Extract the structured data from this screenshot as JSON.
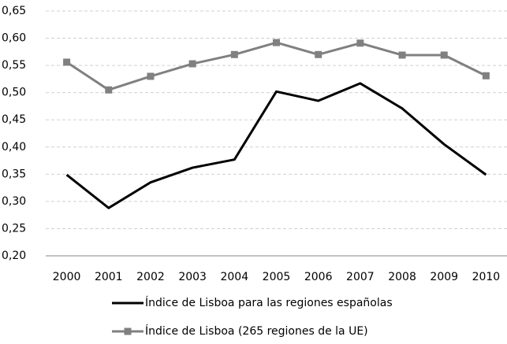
{
  "chart_data": {
    "type": "line",
    "categories": [
      "2000",
      "2001",
      "2002",
      "2003",
      "2004",
      "2005",
      "2006",
      "2007",
      "2008",
      "2009",
      "2010"
    ],
    "series": [
      {
        "name": "Índice de Lisboa para las regiones españolas",
        "color": "#000000",
        "marker": "none",
        "values": [
          0.349,
          0.288,
          0.335,
          0.362,
          0.377,
          0.502,
          0.485,
          0.517,
          0.471,
          0.405,
          0.349
        ]
      },
      {
        "name": "Índice de Lisboa (265 regiones de la UE)",
        "color": "#808080",
        "marker": "square",
        "values": [
          0.556,
          0.505,
          0.53,
          0.553,
          0.57,
          0.592,
          0.57,
          0.591,
          0.569,
          0.569,
          0.531
        ]
      }
    ],
    "ylim": [
      0.2,
      0.65
    ],
    "yticks": [
      {
        "value": 0.2,
        "label": "0,20"
      },
      {
        "value": 0.25,
        "label": "0,25"
      },
      {
        "value": 0.3,
        "label": "0,30"
      },
      {
        "value": 0.35,
        "label": "0,35"
      },
      {
        "value": 0.4,
        "label": "0,40"
      },
      {
        "value": 0.45,
        "label": "0,45"
      },
      {
        "value": 0.5,
        "label": "0,50"
      },
      {
        "value": 0.55,
        "label": "0,55"
      },
      {
        "value": 0.6,
        "label": "0,60"
      },
      {
        "value": 0.65,
        "label": "0,65"
      }
    ],
    "grid": true,
    "legend": "bottom"
  }
}
